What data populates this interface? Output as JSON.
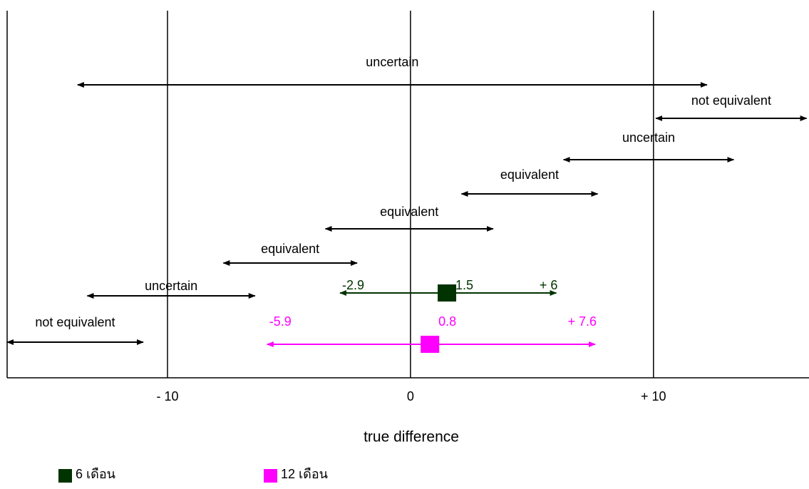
{
  "chart_data": {
    "type": "interval",
    "x_label": "true difference",
    "xlim": [
      -16.6,
      16.4
    ],
    "xticks": [
      {
        "value": -10,
        "label": "- 10"
      },
      0,
      {
        "value": 10,
        "label": "+ 10"
      }
    ],
    "intervals": [
      {
        "label": "uncertain",
        "low": -13.7,
        "high": 12.2
      },
      {
        "label": "not equivalent",
        "low": 10.1,
        "high": 16.3
      },
      {
        "label": "uncertain",
        "low": 6.3,
        "high": 13.3
      },
      {
        "label": "equivalent",
        "low": 2.1,
        "high": 7.7
      },
      {
        "label": "equivalent",
        "low": -3.5,
        "high": 3.4
      },
      {
        "label": "equivalent",
        "low": -7.7,
        "high": -2.2
      },
      {
        "label": "uncertain",
        "low": -13.3,
        "high": -6.4
      },
      {
        "label": "not equivalent",
        "low": -16.6,
        "high": -11
      }
    ],
    "series": [
      {
        "name": "6  เดือน",
        "color": "#003300",
        "values": [
          -2.9,
          1.5,
          6
        ],
        "value_labels": [
          "-2.9",
          "1.5",
          "+ 6"
        ]
      },
      {
        "name": "12 เดือน",
        "color": "#ff00ff",
        "values": [
          -5.9,
          0.8,
          7.6
        ],
        "value_labels": [
          "-5.9",
          "0.8",
          "+ 7.6"
        ]
      }
    ]
  }
}
